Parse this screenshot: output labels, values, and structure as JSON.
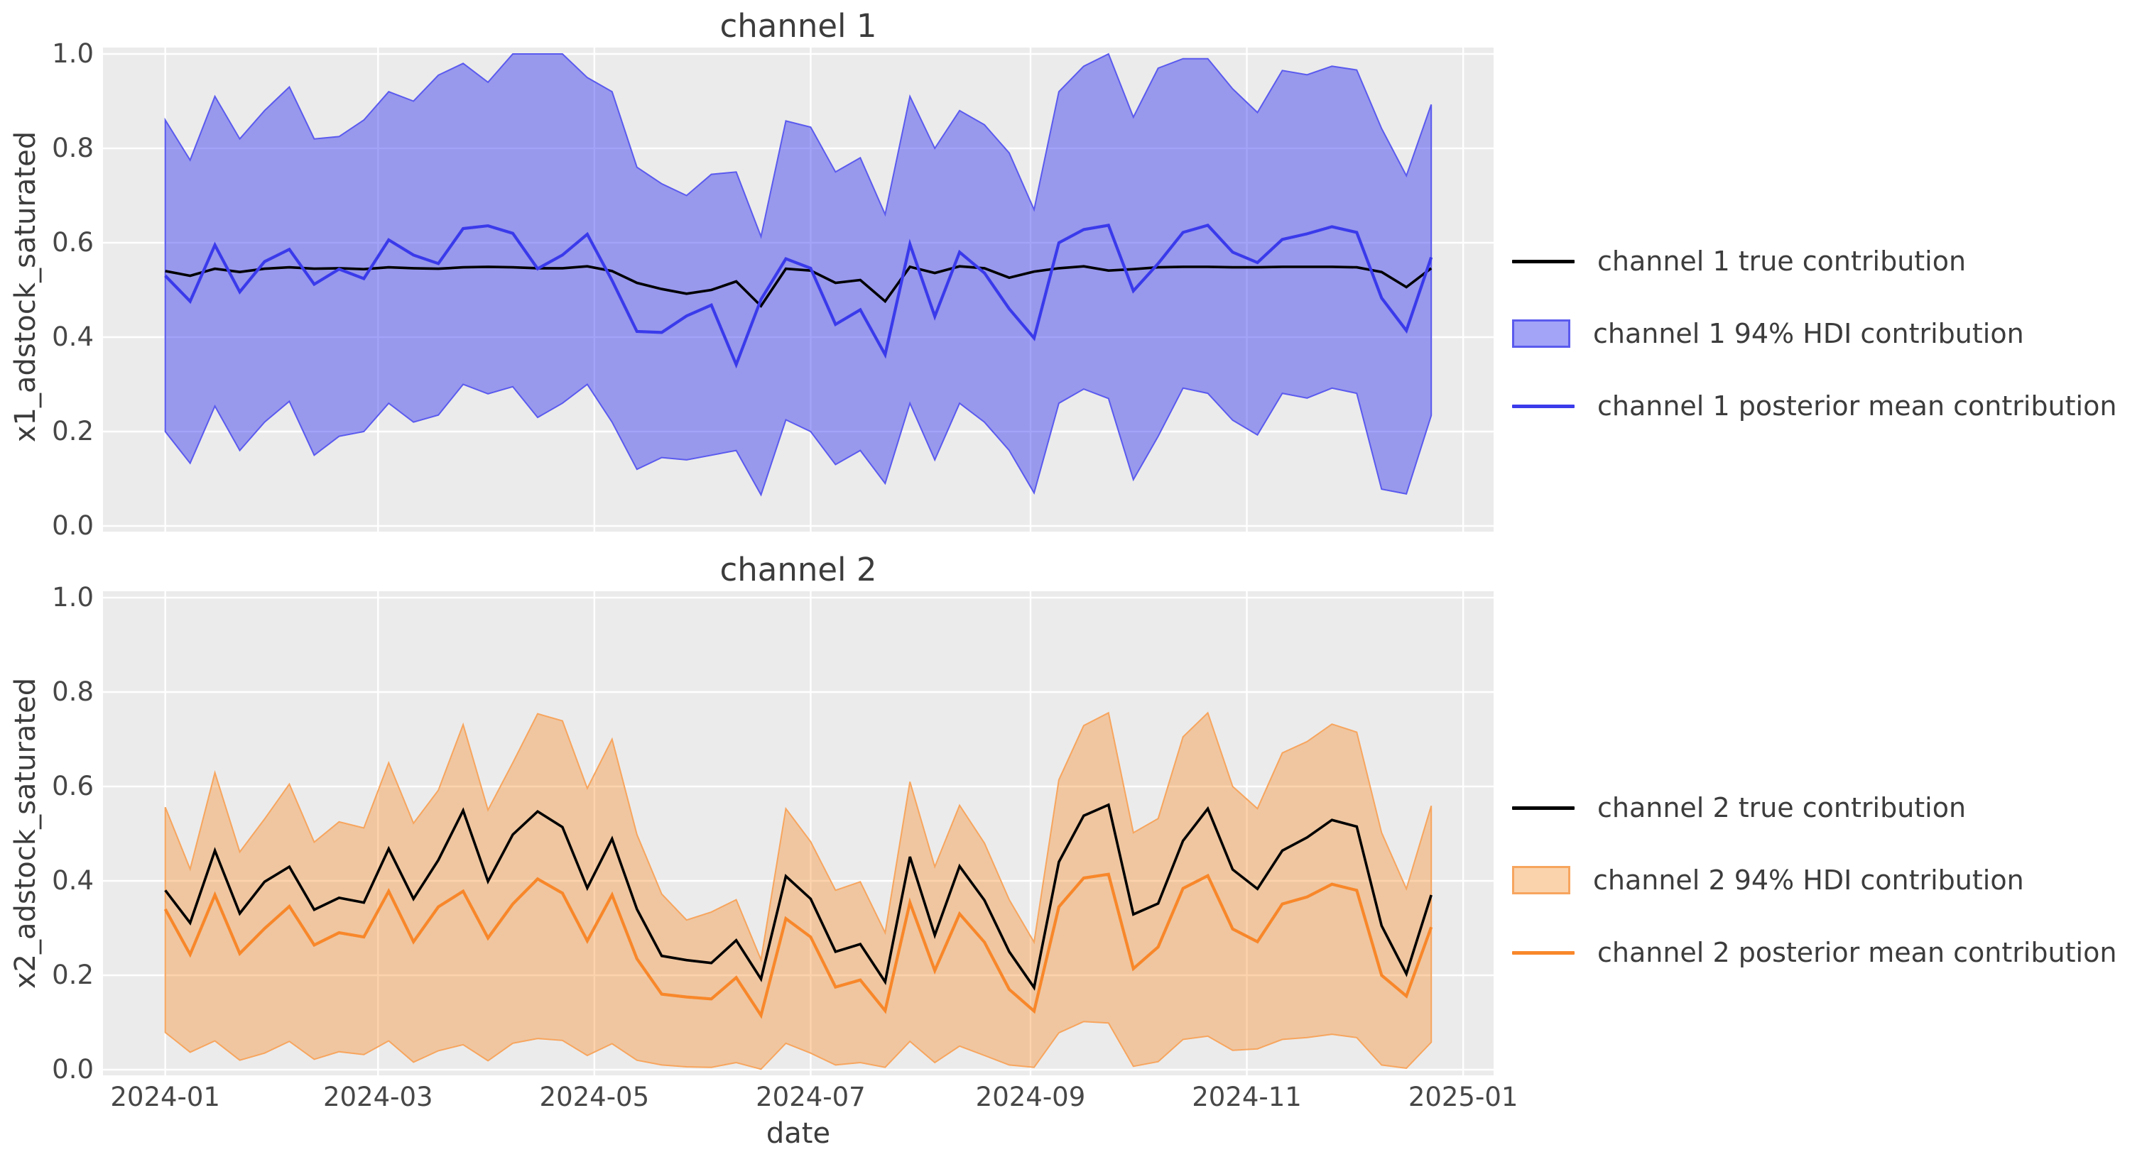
{
  "figure": {
    "background": "#ffffff",
    "panel_background": "#ebebeb",
    "grid_color": "#ffffff",
    "text_color": "#3c3c3c"
  },
  "chart_data": [
    {
      "type": "line",
      "title": "channel 1",
      "xlabel": "",
      "ylabel": "x1_adstock_saturated",
      "ylim": [
        0.0,
        1.0
      ],
      "yticks": [
        "0.0",
        "0.2",
        "0.4",
        "0.6",
        "0.8",
        "1.0"
      ],
      "ytick_values": [
        0.0,
        0.2,
        0.4,
        0.6,
        0.8,
        1.0
      ],
      "xticks": [
        "2024-01",
        "2024-03",
        "2024-05",
        "2024-07",
        "2024-09",
        "2024-11",
        "2025-01"
      ],
      "grid": true,
      "legend_position": "right",
      "x_dates": [
        "2024-01-01",
        "2024-01-08",
        "2024-01-15",
        "2024-01-22",
        "2024-01-29",
        "2024-02-05",
        "2024-02-12",
        "2024-02-19",
        "2024-02-26",
        "2024-03-04",
        "2024-03-11",
        "2024-03-18",
        "2024-03-25",
        "2024-04-01",
        "2024-04-08",
        "2024-04-15",
        "2024-04-22",
        "2024-04-29",
        "2024-05-06",
        "2024-05-13",
        "2024-05-20",
        "2024-05-27",
        "2024-06-03",
        "2024-06-10",
        "2024-06-17",
        "2024-06-24",
        "2024-07-01",
        "2024-07-08",
        "2024-07-15",
        "2024-07-22",
        "2024-07-29",
        "2024-08-05",
        "2024-08-12",
        "2024-08-19",
        "2024-08-26",
        "2024-09-02",
        "2024-09-09",
        "2024-09-16",
        "2024-09-23",
        "2024-09-30",
        "2024-10-07",
        "2024-10-14",
        "2024-10-21",
        "2024-10-28",
        "2024-11-04",
        "2024-11-11",
        "2024-11-18",
        "2024-11-25",
        "2024-12-02",
        "2024-12-09",
        "2024-12-16",
        "2024-12-23"
      ],
      "series": [
        {
          "name": "channel 1 true contribution",
          "kind": "line",
          "color": "#000000",
          "values": [
            0.54,
            0.53,
            0.545,
            0.538,
            0.545,
            0.548,
            0.545,
            0.546,
            0.544,
            0.548,
            0.546,
            0.545,
            0.548,
            0.549,
            0.548,
            0.546,
            0.546,
            0.55,
            0.54,
            0.515,
            0.502,
            0.492,
            0.5,
            0.518,
            0.466,
            0.545,
            0.541,
            0.515,
            0.521,
            0.476,
            0.549,
            0.536,
            0.55,
            0.546,
            0.526,
            0.539,
            0.546,
            0.55,
            0.541,
            0.544,
            0.548,
            0.549,
            0.549,
            0.548,
            0.548,
            0.549,
            0.549,
            0.549,
            0.548,
            0.538,
            0.506,
            0.546
          ]
        },
        {
          "name": "channel 1 94% HDI contribution",
          "kind": "band",
          "fill_rgba": "rgba(45,45,240,0.44)",
          "edge_color": "#5a5aee",
          "legend_fill": "#a3a3f8",
          "upper": [
            0.86,
            0.775,
            0.91,
            0.82,
            0.88,
            0.93,
            0.82,
            0.825,
            0.86,
            0.92,
            0.9,
            0.955,
            0.98,
            0.94,
            1.0,
            1.0,
            1.0,
            0.95,
            0.92,
            0.76,
            0.725,
            0.7,
            0.745,
            0.75,
            0.613,
            0.858,
            0.845,
            0.75,
            0.78,
            0.66,
            0.91,
            0.8,
            0.88,
            0.85,
            0.79,
            0.67,
            0.92,
            0.974,
            1.0,
            0.866,
            0.97,
            0.99,
            0.99,
            0.926,
            0.876,
            0.965,
            0.956,
            0.974,
            0.966,
            0.842,
            0.742,
            0.893
          ],
          "lower": [
            0.2,
            0.133,
            0.254,
            0.16,
            0.22,
            0.264,
            0.15,
            0.19,
            0.2,
            0.26,
            0.22,
            0.235,
            0.3,
            0.28,
            0.295,
            0.23,
            0.26,
            0.3,
            0.22,
            0.12,
            0.145,
            0.14,
            0.15,
            0.16,
            0.066,
            0.225,
            0.2,
            0.13,
            0.16,
            0.09,
            0.26,
            0.14,
            0.26,
            0.22,
            0.16,
            0.07,
            0.26,
            0.29,
            0.27,
            0.098,
            0.19,
            0.292,
            0.281,
            0.224,
            0.193,
            0.281,
            0.271,
            0.292,
            0.281,
            0.078,
            0.068,
            0.234
          ]
        },
        {
          "name": "channel 1 posterior mean contribution",
          "kind": "line",
          "color": "#3a3aeb",
          "values": [
            0.53,
            0.476,
            0.595,
            0.496,
            0.56,
            0.586,
            0.512,
            0.544,
            0.524,
            0.606,
            0.574,
            0.556,
            0.63,
            0.636,
            0.62,
            0.545,
            0.574,
            0.618,
            0.52,
            0.412,
            0.41,
            0.445,
            0.468,
            0.342,
            0.48,
            0.566,
            0.546,
            0.427,
            0.458,
            0.363,
            0.597,
            0.444,
            0.58,
            0.536,
            0.46,
            0.398,
            0.6,
            0.628,
            0.637,
            0.498,
            0.556,
            0.622,
            0.637,
            0.58,
            0.558,
            0.607,
            0.619,
            0.634,
            0.622,
            0.483,
            0.414,
            0.569
          ]
        }
      ],
      "legend": [
        {
          "label": "channel 1 true contribution",
          "swatch": "line",
          "color": "#000000"
        },
        {
          "label": "channel 1 94% HDI contribution",
          "swatch": "patch",
          "fill": "#a3a3f8",
          "edge": "#5a5aee"
        },
        {
          "label": "channel 1 posterior mean contribution",
          "swatch": "line",
          "color": "#3a3aeb"
        }
      ]
    },
    {
      "type": "line",
      "title": "channel 2",
      "xlabel": "date",
      "ylabel": "x2_adstock_saturated",
      "ylim": [
        0.0,
        1.0
      ],
      "yticks": [
        "0.0",
        "0.2",
        "0.4",
        "0.6",
        "0.8",
        "1.0"
      ],
      "ytick_values": [
        0.0,
        0.2,
        0.4,
        0.6,
        0.8,
        1.0
      ],
      "xticks": [
        "2024-01",
        "2024-03",
        "2024-05",
        "2024-07",
        "2024-09",
        "2024-11",
        "2025-01"
      ],
      "grid": true,
      "legend_position": "right",
      "x_dates": [
        "2024-01-01",
        "2024-01-08",
        "2024-01-15",
        "2024-01-22",
        "2024-01-29",
        "2024-02-05",
        "2024-02-12",
        "2024-02-19",
        "2024-02-26",
        "2024-03-04",
        "2024-03-11",
        "2024-03-18",
        "2024-03-25",
        "2024-04-01",
        "2024-04-08",
        "2024-04-15",
        "2024-04-22",
        "2024-04-29",
        "2024-05-06",
        "2024-05-13",
        "2024-05-20",
        "2024-05-27",
        "2024-06-03",
        "2024-06-10",
        "2024-06-17",
        "2024-06-24",
        "2024-07-01",
        "2024-07-08",
        "2024-07-15",
        "2024-07-22",
        "2024-07-29",
        "2024-08-05",
        "2024-08-12",
        "2024-08-19",
        "2024-08-26",
        "2024-09-02",
        "2024-09-09",
        "2024-09-16",
        "2024-09-23",
        "2024-09-30",
        "2024-10-07",
        "2024-10-14",
        "2024-10-21",
        "2024-10-28",
        "2024-11-04",
        "2024-11-11",
        "2024-11-18",
        "2024-11-25",
        "2024-12-02",
        "2024-12-09",
        "2024-12-16",
        "2024-12-23"
      ],
      "series": [
        {
          "name": "channel 2 true contribution",
          "kind": "line",
          "color": "#000000",
          "values": [
            0.38,
            0.311,
            0.464,
            0.331,
            0.398,
            0.43,
            0.339,
            0.364,
            0.354,
            0.468,
            0.362,
            0.444,
            0.549,
            0.399,
            0.498,
            0.547,
            0.514,
            0.385,
            0.489,
            0.34,
            0.241,
            0.232,
            0.226,
            0.274,
            0.192,
            0.41,
            0.362,
            0.25,
            0.266,
            0.186,
            0.451,
            0.285,
            0.431,
            0.359,
            0.25,
            0.174,
            0.44,
            0.538,
            0.561,
            0.329,
            0.352,
            0.485,
            0.553,
            0.424,
            0.383,
            0.464,
            0.492,
            0.529,
            0.515,
            0.305,
            0.203,
            0.37
          ]
        },
        {
          "name": "channel 2 94% HDI contribution",
          "kind": "band",
          "fill_rgba": "rgba(248,140,40,0.38)",
          "edge_color": "#f7a55e",
          "legend_fill": "#fad3ad",
          "upper": [
            0.556,
            0.425,
            0.629,
            0.461,
            0.531,
            0.605,
            0.482,
            0.525,
            0.512,
            0.65,
            0.522,
            0.592,
            0.731,
            0.55,
            0.65,
            0.754,
            0.739,
            0.596,
            0.7,
            0.498,
            0.372,
            0.317,
            0.334,
            0.36,
            0.233,
            0.553,
            0.483,
            0.38,
            0.398,
            0.29,
            0.61,
            0.43,
            0.56,
            0.48,
            0.36,
            0.27,
            0.614,
            0.729,
            0.756,
            0.502,
            0.532,
            0.705,
            0.756,
            0.6,
            0.553,
            0.671,
            0.695,
            0.732,
            0.715,
            0.502,
            0.383,
            0.559
          ],
          "lower": [
            0.079,
            0.037,
            0.061,
            0.02,
            0.035,
            0.06,
            0.022,
            0.038,
            0.032,
            0.061,
            0.016,
            0.04,
            0.053,
            0.019,
            0.056,
            0.066,
            0.062,
            0.03,
            0.055,
            0.02,
            0.01,
            0.006,
            0.005,
            0.015,
            0.001,
            0.056,
            0.035,
            0.01,
            0.015,
            0.005,
            0.06,
            0.015,
            0.05,
            0.03,
            0.01,
            0.005,
            0.078,
            0.102,
            0.099,
            0.007,
            0.017,
            0.064,
            0.071,
            0.041,
            0.044,
            0.064,
            0.068,
            0.075,
            0.068,
            0.01,
            0.003,
            0.058
          ]
        },
        {
          "name": "channel 2 posterior mean contribution",
          "kind": "line",
          "color": "#f8872a",
          "values": [
            0.34,
            0.244,
            0.37,
            0.246,
            0.299,
            0.346,
            0.264,
            0.29,
            0.281,
            0.378,
            0.271,
            0.345,
            0.378,
            0.279,
            0.351,
            0.404,
            0.374,
            0.273,
            0.37,
            0.235,
            0.16,
            0.154,
            0.15,
            0.195,
            0.115,
            0.32,
            0.281,
            0.175,
            0.19,
            0.125,
            0.354,
            0.21,
            0.33,
            0.27,
            0.17,
            0.124,
            0.345,
            0.406,
            0.414,
            0.214,
            0.26,
            0.384,
            0.411,
            0.298,
            0.271,
            0.351,
            0.366,
            0.393,
            0.38,
            0.2,
            0.156,
            0.302
          ]
        }
      ],
      "legend": [
        {
          "label": "channel 2 true contribution",
          "swatch": "line",
          "color": "#000000"
        },
        {
          "label": "channel 2 94% HDI contribution",
          "swatch": "patch",
          "fill": "#fad3ad",
          "edge": "#f7a55e"
        },
        {
          "label": "channel 2 posterior mean contribution",
          "swatch": "line",
          "color": "#f8872a"
        }
      ]
    }
  ]
}
